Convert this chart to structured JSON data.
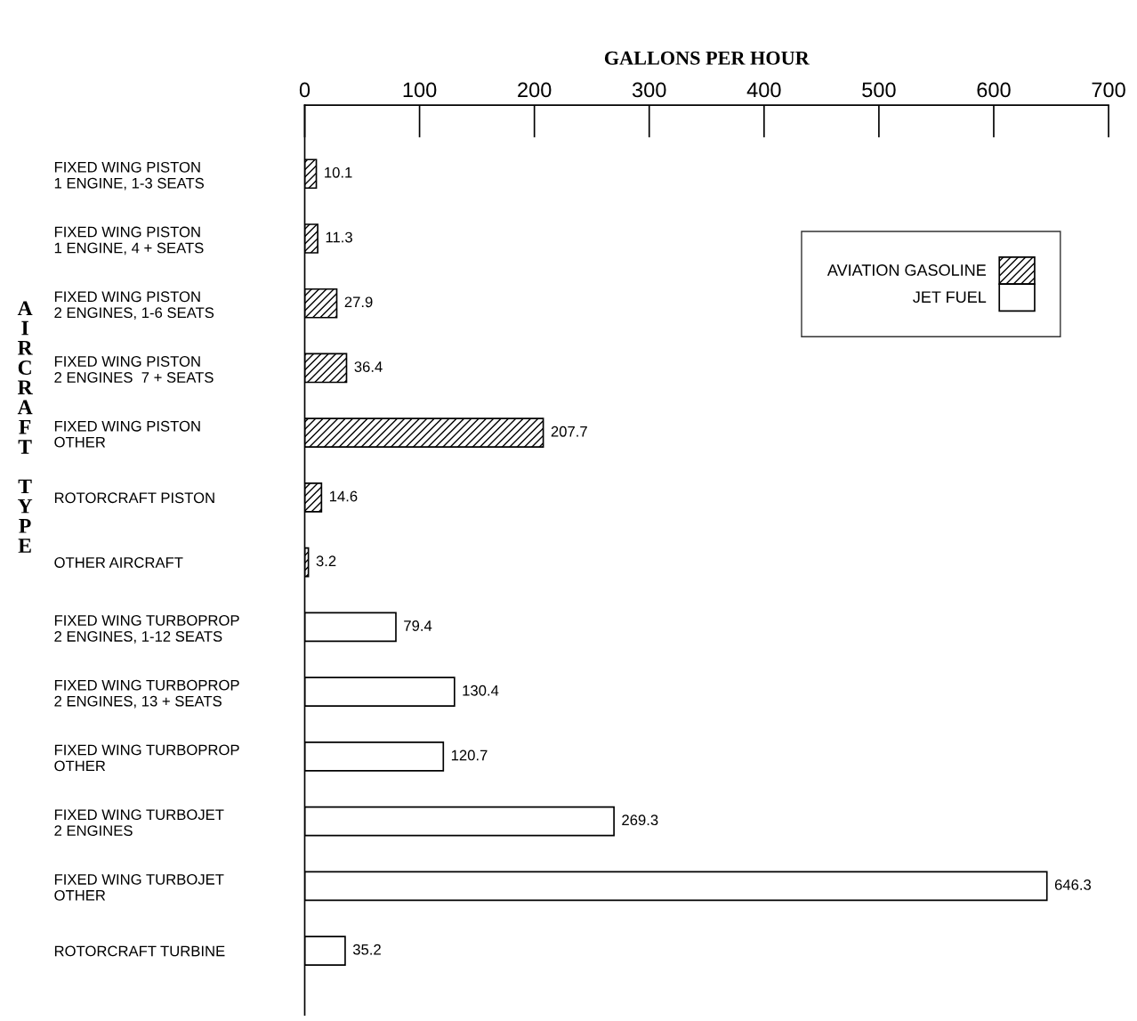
{
  "chart_data": {
    "type": "bar",
    "orientation": "horizontal",
    "xlabel": "GALLONS PER HOUR",
    "ylabel": "AIRCRAFT TYPE",
    "categories": [
      "FIXED WING PISTON\n1 ENGINE, 1-3 SEATS",
      "FIXED WING PISTON\n1 ENGINE, 4 + SEATS",
      "FIXED WING PISTON\n2 ENGINES, 1-6 SEATS",
      "FIXED WING PISTON\n2 ENGINES  7 + SEATS",
      "FIXED WING PISTON\nOTHER",
      "ROTORCRAFT PISTON",
      "OTHER AIRCRAFT",
      "FIXED WING TURBOPROP\n2 ENGINES, 1-12 SEATS",
      "FIXED WING TURBOPROP\n2 ENGINES, 13 + SEATS",
      "FIXED WING TURBOPROP\nOTHER",
      "FIXED WING TURBOJET\n2 ENGINES",
      "FIXED WING TURBOJET\nOTHER",
      "ROTORCRAFT TURBINE"
    ],
    "series": [
      {
        "name": "AVIATION GASOLINE",
        "color": "#000000",
        "values": [
          10.1,
          11.3,
          27.9,
          36.4,
          207.7,
          14.6,
          3.2,
          null,
          null,
          null,
          null,
          null,
          null
        ]
      },
      {
        "name": "JET FUEL",
        "color": "#ffffff",
        "values": [
          null,
          null,
          null,
          null,
          null,
          null,
          null,
          79.4,
          130.4,
          120.7,
          269.3,
          646.3,
          35.2
        ]
      }
    ],
    "xlim": [
      0,
      700
    ],
    "xticks": [
      0,
      100,
      200,
      300,
      400,
      500,
      600,
      700
    ],
    "data_labels": true,
    "legend": "top right",
    "grid": false
  }
}
